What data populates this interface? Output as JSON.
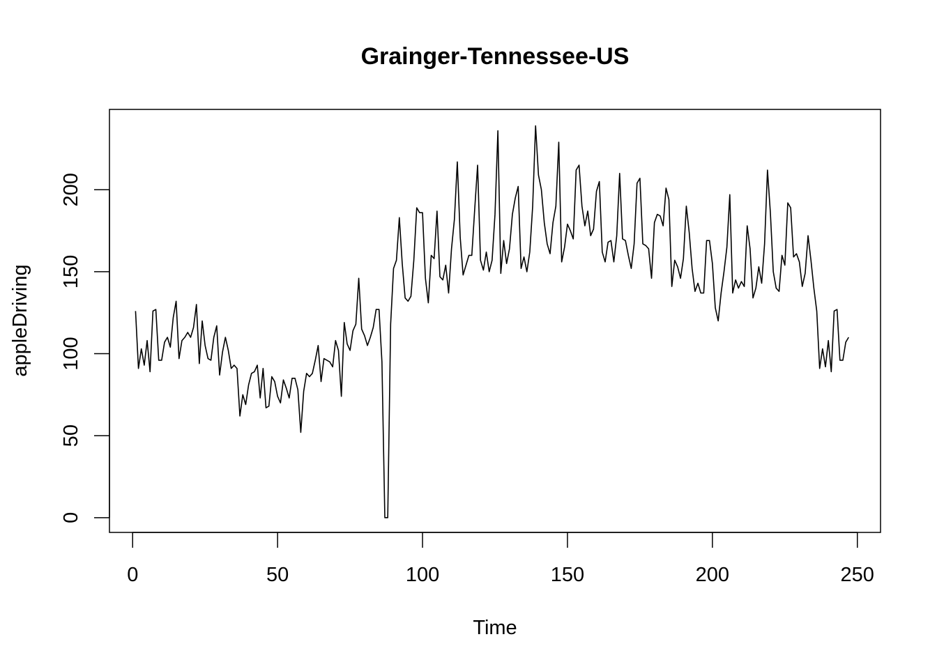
{
  "chart_data": {
    "type": "line",
    "title": "Grainger-Tennessee-US",
    "xlabel": "Time",
    "ylabel": "appleDriving",
    "xlim": [
      -8,
      258
    ],
    "ylim": [
      -9,
      249
    ],
    "x_ticks": [
      0,
      50,
      100,
      150,
      200,
      250
    ],
    "y_ticks": [
      0,
      50,
      100,
      150,
      200
    ],
    "grid": false,
    "legend": "none",
    "line_color": "#000000",
    "series": [
      {
        "x_start": 1,
        "values": [
          126,
          91,
          103,
          93,
          108,
          89,
          126,
          127,
          96,
          96,
          107,
          110,
          104,
          122,
          132,
          97,
          108,
          110,
          113,
          110,
          116,
          130,
          94,
          120,
          105,
          97,
          96,
          110,
          117,
          87,
          101,
          110,
          102,
          91,
          93,
          91,
          62,
          75,
          69,
          81,
          88,
          89,
          93,
          73,
          91,
          67,
          68,
          86,
          83,
          74,
          70,
          84,
          79,
          73,
          85,
          85,
          78,
          52,
          77,
          88,
          86,
          88,
          96,
          105,
          83,
          97,
          96,
          95,
          92,
          108,
          102,
          74,
          119,
          106,
          102,
          114,
          118,
          146,
          115,
          111,
          105,
          110,
          116,
          127,
          127,
          95,
          0,
          0,
          118,
          152,
          157,
          183,
          155,
          134,
          132,
          135,
          157,
          189,
          186,
          186,
          146,
          131,
          160,
          158,
          187,
          147,
          145,
          154,
          137,
          164,
          182,
          217,
          171,
          148,
          154,
          160,
          160,
          188,
          215,
          157,
          151,
          162,
          150,
          157,
          185,
          236,
          149,
          169,
          155,
          164,
          185,
          195,
          202,
          152,
          159,
          150,
          162,
          190,
          239,
          209,
          200,
          180,
          167,
          161,
          180,
          190,
          229,
          156,
          165,
          179,
          175,
          170,
          212,
          215,
          190,
          178,
          187,
          172,
          176,
          199,
          205,
          162,
          156,
          168,
          169,
          156,
          172,
          210,
          170,
          169,
          160,
          152,
          167,
          204,
          207,
          167,
          166,
          164,
          146,
          180,
          185,
          184,
          178,
          201,
          194,
          141,
          157,
          153,
          146,
          158,
          190,
          174,
          152,
          138,
          143,
          137,
          137,
          169,
          169,
          155,
          128,
          120,
          137,
          150,
          165,
          197,
          137,
          145,
          140,
          144,
          141,
          178,
          164,
          134,
          140,
          153,
          143,
          167,
          212,
          186,
          150,
          140,
          138,
          160,
          154,
          192,
          189,
          159,
          161,
          156,
          141,
          149,
          172,
          157,
          140,
          126,
          91,
          103,
          92,
          108,
          89,
          126,
          127,
          96,
          96,
          107,
          110
        ]
      }
    ]
  }
}
